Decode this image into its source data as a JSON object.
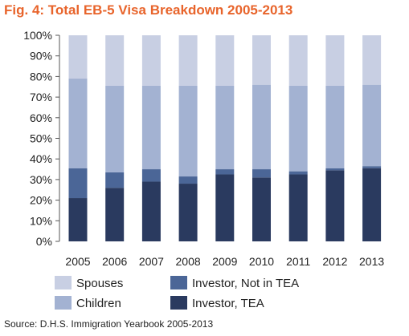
{
  "title": "Fig. 4: Total EB-5 Visa Breakdown 2005-2013",
  "source": "Source: D.H.S. Immigration Yearbook 2005-2013",
  "colors": {
    "spouses": "#c8cfe3",
    "children": "#a3b2d2",
    "investor_not_tea": "#4b6697",
    "investor_tea": "#2a3a5f"
  },
  "chart_data": {
    "type": "bar",
    "stacked": true,
    "categories": [
      "2005",
      "2006",
      "2007",
      "2008",
      "2009",
      "2010",
      "2011",
      "2012",
      "2013"
    ],
    "series": [
      {
        "name": "Investor, TEA",
        "color_key": "investor_tea",
        "values": [
          21,
          26,
          29,
          28,
          32.5,
          31,
          32.5,
          34.5,
          35.5
        ]
      },
      {
        "name": "Investor, Not in TEA",
        "color_key": "investor_not_tea",
        "values": [
          14.5,
          7.5,
          6,
          3.5,
          2.5,
          4,
          1.5,
          1,
          1
        ]
      },
      {
        "name": "Children",
        "color_key": "children",
        "values": [
          43.5,
          42,
          40.5,
          44,
          40.5,
          41,
          41.5,
          40,
          39.5
        ]
      },
      {
        "name": "Spouses",
        "color_key": "spouses",
        "values": [
          21,
          24.5,
          24.5,
          24.5,
          24.5,
          24,
          24.5,
          24.5,
          24
        ]
      }
    ],
    "ylim": [
      0,
      100
    ],
    "yticks": [
      "0%",
      "10%",
      "20%",
      "30%",
      "40%",
      "50%",
      "60%",
      "70%",
      "80%",
      "90%",
      "100%"
    ],
    "grid": false,
    "legend": {
      "placement": "bottom",
      "items": [
        {
          "label": "Spouses",
          "color_key": "spouses"
        },
        {
          "label": "Investor, Not in TEA",
          "color_key": "investor_not_tea"
        },
        {
          "label": "Children",
          "color_key": "children"
        },
        {
          "label": "Investor, TEA",
          "color_key": "investor_tea"
        }
      ]
    }
  }
}
